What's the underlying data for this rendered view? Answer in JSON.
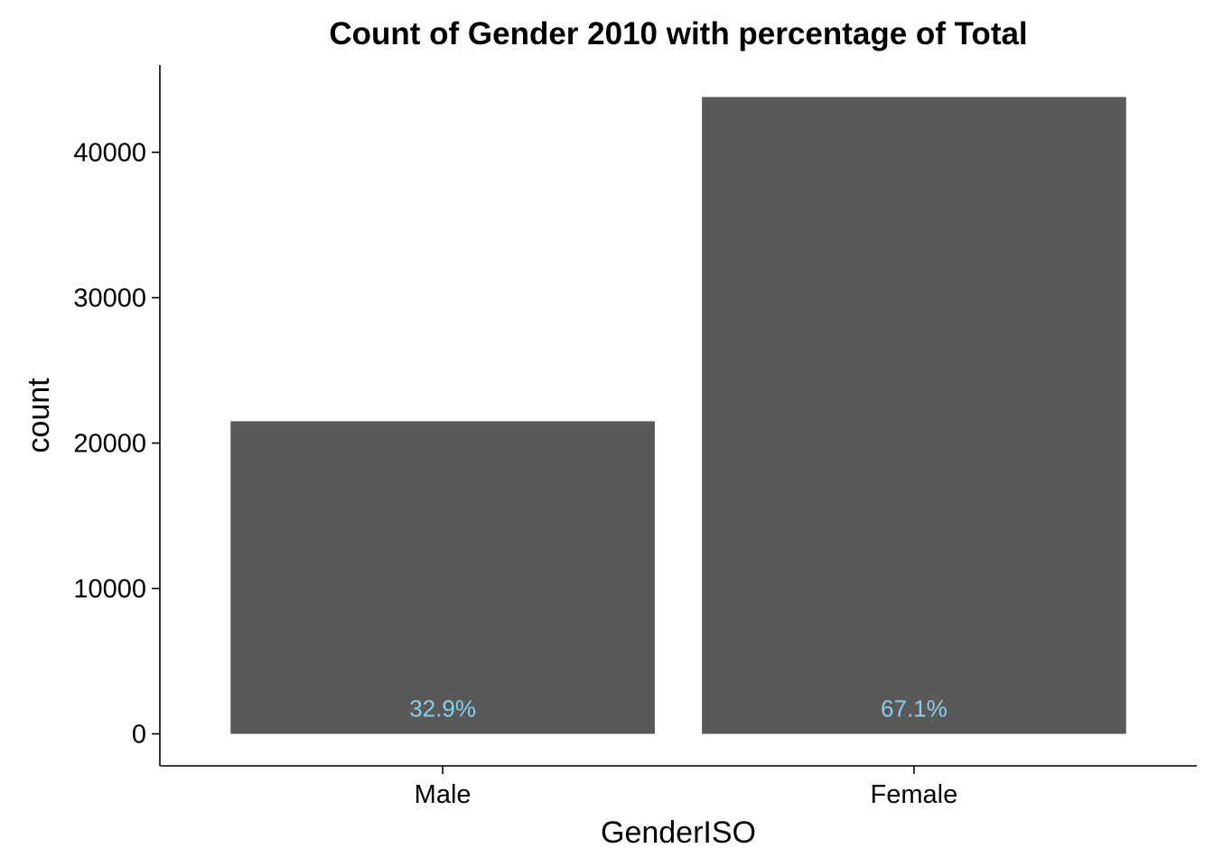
{
  "chart_data": {
    "type": "bar",
    "title": "Count of Gender 2010 with percentage of Total",
    "xlabel": "GenderISO",
    "ylabel": "count",
    "categories": [
      "Male",
      "Female"
    ],
    "values": [
      21500,
      43800
    ],
    "data_labels": [
      "32.9%",
      "67.1%"
    ],
    "yticks": [
      0,
      10000,
      20000,
      30000,
      40000
    ],
    "ytick_labels": [
      "0",
      "10000",
      "20000",
      "30000",
      "40000"
    ],
    "ylim": [
      -2200,
      46000
    ],
    "grid": false,
    "bar_color": "#595959",
    "label_color": "#87CEEB"
  }
}
